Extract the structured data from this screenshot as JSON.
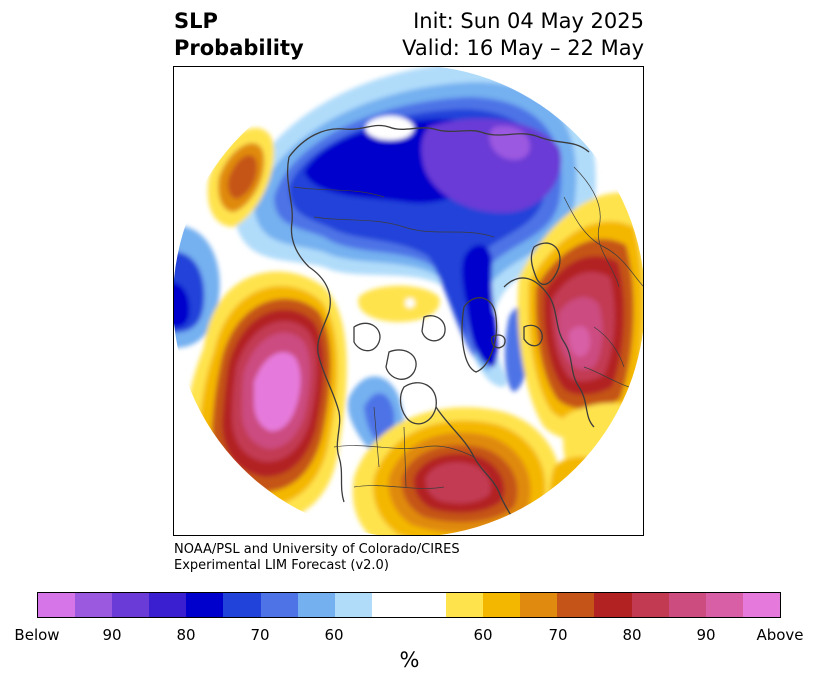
{
  "title": {
    "line1": "SLP",
    "line2": "Probability",
    "init": "Init: Sun 04 May 2025",
    "valid": "Valid: 16 May – 22 May"
  },
  "credit": {
    "line1": "NOAA/PSL and University of Colorado/CIRES",
    "line2": "Experimental LIM Forecast (v2.0)"
  },
  "colorbar": {
    "colors": [
      "#d675e8",
      "#9b59e0",
      "#6a3bd6",
      "#3a1fd0",
      "#0000cc",
      "#2143d9",
      "#4d73e6",
      "#74b0f0",
      "#b0dcfa",
      "#ffffff",
      "#ffffff",
      "#ffe34d",
      "#f4b700",
      "#e08a10",
      "#c55418",
      "#b22222",
      "#c23a52",
      "#cc4c80",
      "#d85ea6",
      "#e67adc"
    ],
    "labels": [
      "Below",
      "90",
      "80",
      "70",
      "60",
      "60",
      "70",
      "80",
      "90",
      "Above"
    ],
    "unit": "%"
  }
}
